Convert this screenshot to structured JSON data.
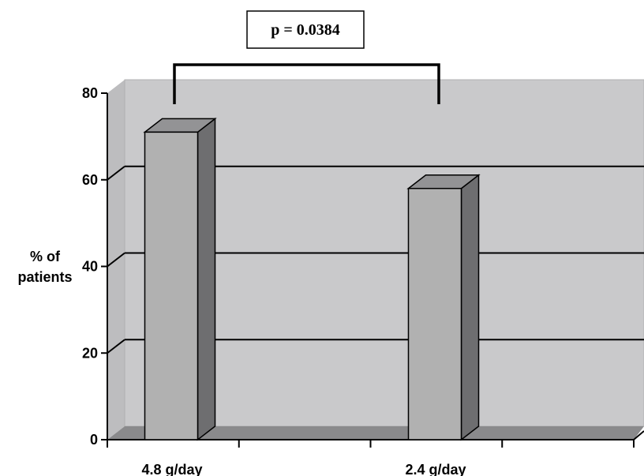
{
  "chart_data": {
    "type": "bar",
    "style": "3d",
    "categories": [
      "4.8 g/day",
      "2.4 g/day"
    ],
    "values": [
      71,
      58
    ],
    "title": "",
    "xlabel": "",
    "ylabel": [
      "% of",
      "patients"
    ],
    "ylim": [
      0,
      80
    ],
    "yticks": [
      0,
      20,
      40,
      60,
      80
    ],
    "grid": true,
    "annotation": {
      "text": "p = 0.0384",
      "type": "significance-bracket",
      "between": [
        "4.8 g/day",
        "2.4 g/day"
      ]
    },
    "colors": {
      "bar_front": "#b1b1b1",
      "bar_side": "#6e6e70",
      "bar_top": "#939395",
      "back_wall": "#c9c9cb",
      "side_wall": "#bdbdbf",
      "floor": "#8a8a8c",
      "gridline": "#000000"
    }
  }
}
